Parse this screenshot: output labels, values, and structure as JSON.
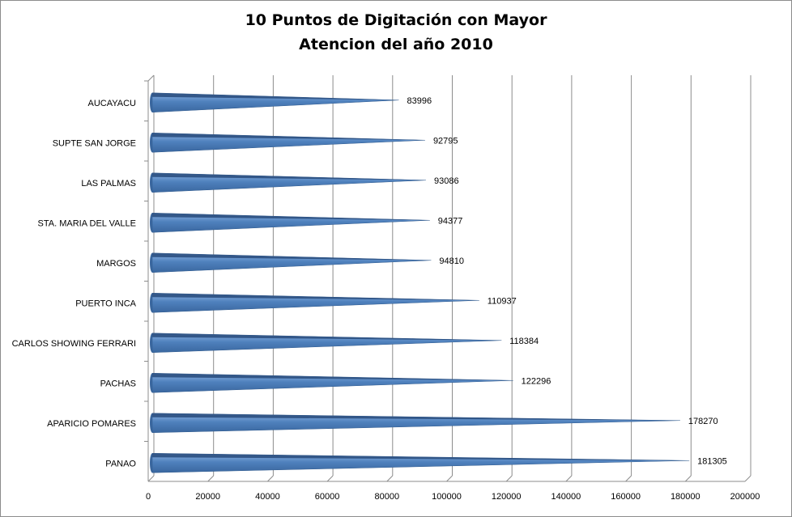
{
  "chart_data": {
    "type": "bar",
    "orientation": "horizontal",
    "title_line1": "10  Puntos de Digitación con Mayor",
    "title_line2": "Atencion del año 2010",
    "categories": [
      "AUCAYACU",
      "SUPTE SAN JORGE",
      "LAS PALMAS",
      "STA. MARIA DEL VALLE",
      "MARGOS",
      "PUERTO  INCA",
      "CARLOS SHOWING  FERRARI",
      "PACHAS",
      "APARICIO POMARES",
      "PANAO"
    ],
    "values": [
      83996,
      92795,
      93086,
      94377,
      94810,
      110937,
      118384,
      122296,
      178270,
      181305
    ],
    "data_labels": [
      "83996",
      "92795",
      "93086",
      "94377",
      "94810",
      "110937",
      "118384",
      "122296",
      "178270",
      "181305"
    ],
    "x_ticks": [
      "0",
      "20000",
      "40000",
      "60000",
      "80000",
      "100000",
      "120000",
      "140000",
      "160000",
      "180000",
      "200000"
    ],
    "xlim": [
      0,
      200000
    ],
    "xlabel": "",
    "ylabel": "",
    "grid": "vertical",
    "legend": "none",
    "bar_shape": "3d-cone",
    "colors": {
      "bar_top": "#8fb4e3",
      "bar_mid": "#4f81bd",
      "bar_bottom": "#3a679f",
      "grid": "#8c8c8c"
    }
  }
}
